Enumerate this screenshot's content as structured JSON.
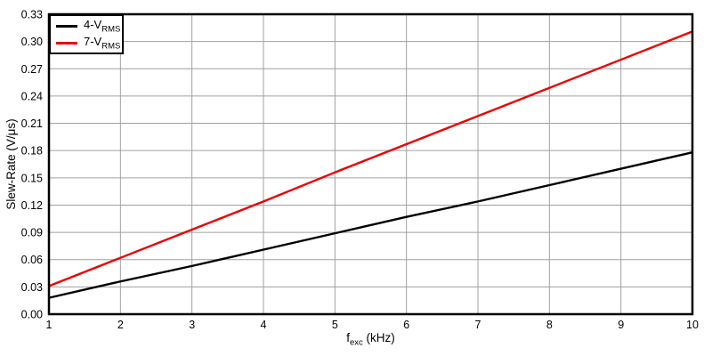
{
  "chart_data": {
    "type": "line",
    "title": "",
    "xlabel": "f_exc (kHz)",
    "xlabel_main": "f",
    "xlabel_sub": "exc",
    "xlabel_unit": "(kHz)",
    "ylabel": "Slew-Rate (V/μs)",
    "xlim": [
      1,
      10
    ],
    "ylim": [
      0,
      0.33
    ],
    "x_ticks": [
      "1",
      "2",
      "3",
      "4",
      "5",
      "6",
      "7",
      "8",
      "9",
      "10"
    ],
    "y_ticks": [
      "0.00",
      "0.03",
      "0.06",
      "0.09",
      "0.12",
      "0.15",
      "0.18",
      "0.21",
      "0.24",
      "0.27",
      "0.30",
      "0.33"
    ],
    "grid": "on",
    "legend_position": "top-left",
    "x": [
      1,
      2,
      3,
      4,
      5,
      6,
      7,
      8,
      9,
      10
    ],
    "series": [
      {
        "name": "4-V_RMS",
        "label_main": "4-V",
        "label_sub": "RMS",
        "color": "#000000",
        "values": [
          0.018,
          0.036,
          0.053,
          0.071,
          0.089,
          0.107,
          0.124,
          0.142,
          0.16,
          0.178
        ]
      },
      {
        "name": "7-V_RMS",
        "label_main": "7-V",
        "label_sub": "RMS",
        "color": "#ee0000",
        "values": [
          0.031,
          0.062,
          0.093,
          0.124,
          0.156,
          0.187,
          0.218,
          0.249,
          0.28,
          0.311
        ]
      }
    ],
    "colors": {
      "grid": "#a0a0a0",
      "frame": "#000000",
      "background": "#ffffff",
      "text": "#000000"
    }
  }
}
